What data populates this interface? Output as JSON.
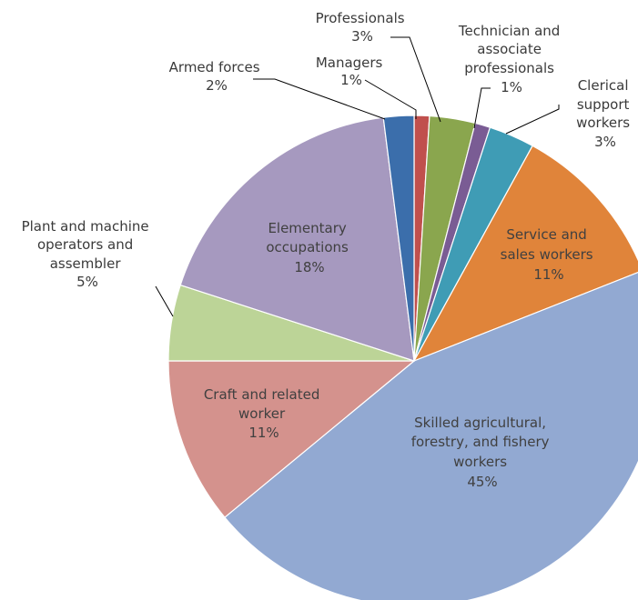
{
  "chart_data": {
    "type": "pie",
    "title": "",
    "slices": [
      {
        "name": "Managers",
        "value": 1,
        "label": "1%",
        "color": "#C0504D"
      },
      {
        "name": "Professionals",
        "value": 3,
        "label": "3%",
        "color": "#8AA64E"
      },
      {
        "name": "Technician and associate professionals",
        "value": 1,
        "label": "1%",
        "color": "#7A5C94"
      },
      {
        "name": "Clerical support workers",
        "value": 3,
        "label": "3%",
        "color": "#3F9CB5"
      },
      {
        "name": "Service and sales workers",
        "value": 11,
        "label": "11%",
        "color": "#E0843A"
      },
      {
        "name": "Skilled agricultural, forestry, and fishery workers",
        "value": 45,
        "label": "45%",
        "color": "#92A9D2"
      },
      {
        "name": "Craft and related worker",
        "value": 11,
        "label": "11%",
        "color": "#D4928D"
      },
      {
        "name": "Plant and machine operators and assembler",
        "value": 5,
        "label": "5%",
        "color": "#BCD497"
      },
      {
        "name": "Elementary occupations",
        "value": 18,
        "label": "18%",
        "color": "#A699BF"
      },
      {
        "name": "Armed forces",
        "value": 2,
        "label": "2%",
        "color": "#3B6EAB"
      }
    ]
  },
  "labels": {
    "managers": {
      "line1": "Managers",
      "line2": "1%"
    },
    "professionals": {
      "line1": "Professionals",
      "line2": "3%"
    },
    "technician": {
      "line1": "Technician and",
      "line2": "associate",
      "line3": "professionals",
      "line4": "1%"
    },
    "clerical": {
      "line1": "Clerical",
      "line2": "support",
      "line3": "workers",
      "line4": "3%"
    },
    "service": {
      "line1": "Service and",
      "line2": "sales workers",
      "line3": "11%"
    },
    "skilled": {
      "line1": "Skilled agricultural,",
      "line2": "forestry, and fishery",
      "line3": "workers",
      "line4": "45%"
    },
    "craft": {
      "line1": "Craft and related",
      "line2": "worker",
      "line3": "11%"
    },
    "plant": {
      "line1": "Plant and machine",
      "line2": "operators and",
      "line3": "assembler",
      "line4": "5%"
    },
    "elementary": {
      "line1": "Elementary",
      "line2": "occupations",
      "line3": "18%"
    },
    "armed": {
      "line1": "Armed forces",
      "line2": "2%"
    }
  }
}
